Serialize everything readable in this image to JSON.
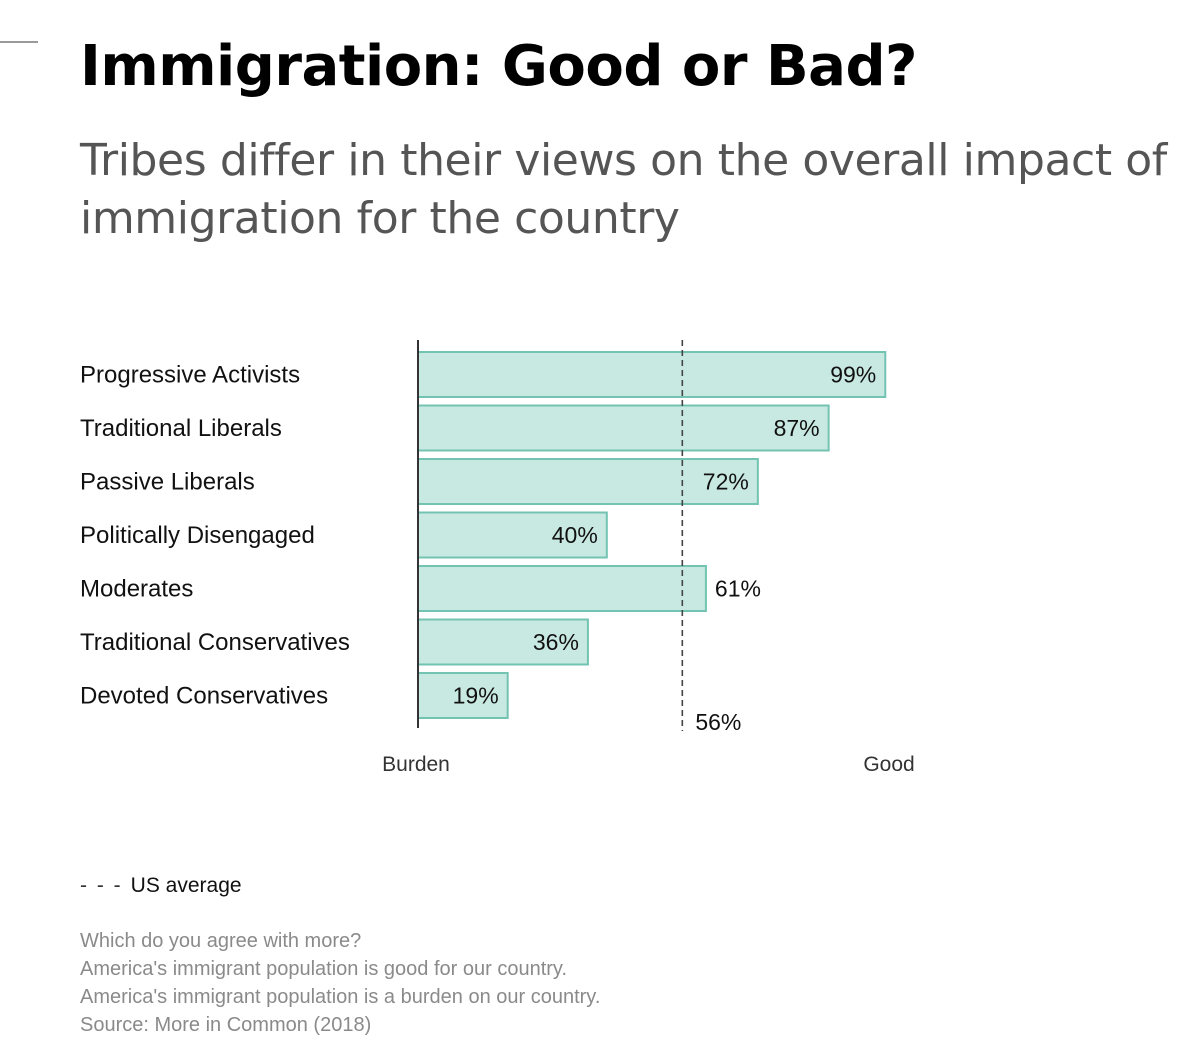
{
  "header": {
    "title": "Immigration: Good or Bad?",
    "subtitle": "Tribes differ in their views on the overall impact of immigration for the country"
  },
  "chart_data": {
    "type": "bar",
    "orientation": "horizontal",
    "categories": [
      "Progressive Activists",
      "Traditional Liberals",
      "Passive Liberals",
      "Politically Disengaged",
      "Moderates",
      "Traditional Conservatives",
      "Devoted Conservatives"
    ],
    "values": [
      99,
      87,
      72,
      40,
      61,
      36,
      19
    ],
    "value_labels": [
      "99%",
      "87%",
      "72%",
      "40%",
      "61%",
      "36%",
      "19%"
    ],
    "xlim": [
      0,
      100
    ],
    "axis_left_label": "Burden",
    "axis_right_label": "Good",
    "reference_line": {
      "value": 56,
      "label": "56%",
      "legend": "US average"
    },
    "grid": false,
    "colors": {
      "bar_fill": "#c8e9e2",
      "bar_stroke": "#73c3b2",
      "reference": "#444444",
      "axis": "#333333"
    }
  },
  "legend": {
    "key": "- - -",
    "label": "US average"
  },
  "notes": {
    "question": "Which do you agree with more?",
    "option_good": "America's immigrant population is good for our country.",
    "option_burden": "America's immigrant population is a burden on our country.",
    "source": "Source: More in Common (2018)"
  }
}
